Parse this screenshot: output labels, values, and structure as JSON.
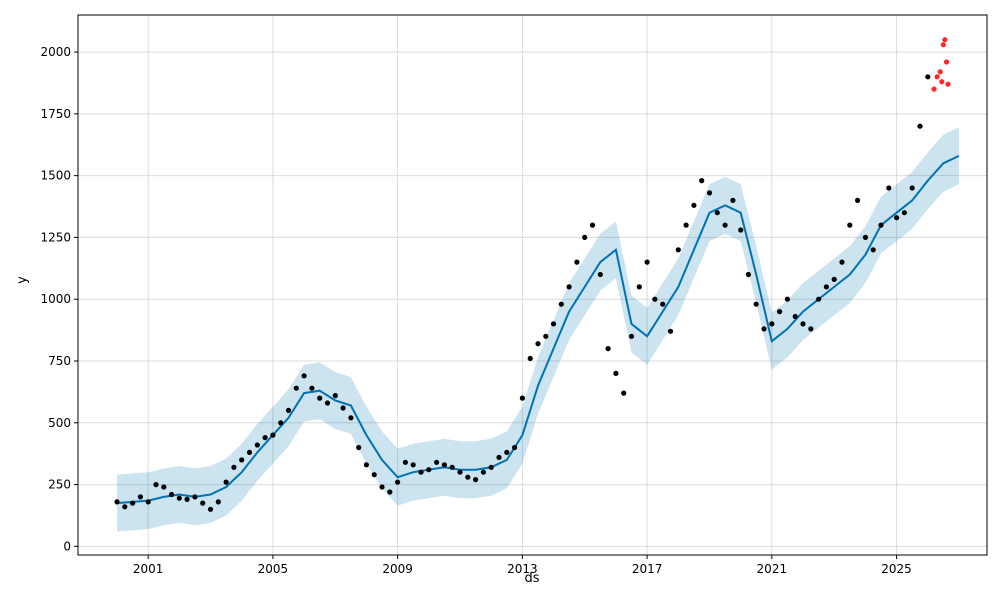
{
  "chart_data": {
    "type": "line",
    "title": "",
    "xlabel": "ds",
    "ylabel": "y",
    "xlim": [
      1998.75,
      2027.9
    ],
    "ylim": [
      -35,
      2150
    ],
    "grid": true,
    "x_ticks": [
      2001,
      2005,
      2009,
      2013,
      2017,
      2021,
      2025
    ],
    "x_tick_labels": [
      "2001",
      "2005",
      "2009",
      "2013",
      "2017",
      "2021",
      "2025"
    ],
    "y_ticks": [
      0,
      250,
      500,
      750,
      1000,
      1250,
      1500,
      1750,
      2000
    ],
    "y_tick_labels": [
      "0",
      "250",
      "500",
      "750",
      "1000",
      "1250",
      "1500",
      "1750",
      "2000"
    ],
    "colors": {
      "actual": "#000000",
      "forecast": "#0072B2",
      "interval": "#0072B2",
      "anomaly": "#ff0000"
    },
    "series": [
      {
        "role": "actual",
        "style": "points",
        "x": [
          2000.0,
          2000.25,
          2000.5,
          2000.75,
          2001.0,
          2001.25,
          2001.5,
          2001.75,
          2002.0,
          2002.25,
          2002.5,
          2002.75,
          2003.0,
          2003.25,
          2003.5,
          2003.75,
          2004.0,
          2004.25,
          2004.5,
          2004.75,
          2005.0,
          2005.25,
          2005.5,
          2005.75,
          2006.0,
          2006.25,
          2006.5,
          2006.75,
          2007.0,
          2007.25,
          2007.5,
          2007.75,
          2008.0,
          2008.25,
          2008.5,
          2008.75,
          2009.0,
          2009.25,
          2009.5,
          2009.75,
          2010.0,
          2010.25,
          2010.5,
          2010.75,
          2011.0,
          2011.25,
          2011.5,
          2011.75,
          2012.0,
          2012.25,
          2012.5,
          2012.75,
          2013.0,
          2013.25,
          2013.5,
          2013.75,
          2014.0,
          2014.25,
          2014.5,
          2014.75,
          2015.0,
          2015.25,
          2015.5,
          2015.75,
          2016.0,
          2016.25,
          2016.5,
          2016.75,
          2017.0,
          2017.25,
          2017.5,
          2017.75,
          2018.0,
          2018.25,
          2018.5,
          2018.75,
          2019.0,
          2019.25,
          2019.5,
          2019.75,
          2020.0,
          2020.25,
          2020.5,
          2020.75,
          2021.0,
          2021.25,
          2021.5,
          2021.75,
          2022.0,
          2022.25,
          2022.5,
          2022.75,
          2023.0,
          2023.25,
          2023.5,
          2023.75,
          2024.0,
          2024.25,
          2024.5,
          2024.75,
          2025.0,
          2025.25,
          2025.5,
          2025.75,
          2026.0
        ],
        "y": [
          180,
          160,
          175,
          200,
          180,
          250,
          240,
          210,
          195,
          190,
          200,
          175,
          150,
          180,
          260,
          320,
          350,
          380,
          410,
          440,
          450,
          500,
          550,
          640,
          690,
          640,
          600,
          580,
          610,
          560,
          520,
          400,
          330,
          290,
          240,
          220,
          260,
          340,
          330,
          300,
          310,
          340,
          330,
          320,
          300,
          280,
          270,
          300,
          320,
          360,
          380,
          400,
          600,
          760,
          820,
          850,
          900,
          980,
          1050,
          1150,
          1250,
          1300,
          1100,
          800,
          700,
          620,
          850,
          1050,
          1150,
          1000,
          980,
          870,
          1200,
          1300,
          1380,
          1480,
          1430,
          1350,
          1300,
          1400,
          1280,
          1100,
          980,
          880,
          900,
          950,
          1000,
          930,
          900,
          880,
          1000,
          1050,
          1080,
          1150,
          1300,
          1400,
          1250,
          1200,
          1300,
          1450,
          1330,
          1350,
          1450,
          1700,
          1900
        ]
      },
      {
        "role": "forecast",
        "style": "line",
        "x": [
          2000.0,
          2000.5,
          2001.0,
          2001.5,
          2002.0,
          2002.5,
          2003.0,
          2003.5,
          2004.0,
          2004.5,
          2005.0,
          2005.5,
          2006.0,
          2006.5,
          2007.0,
          2007.5,
          2008.0,
          2008.5,
          2009.0,
          2009.5,
          2010.0,
          2010.5,
          2011.0,
          2011.5,
          2012.0,
          2012.5,
          2013.0,
          2013.5,
          2014.0,
          2014.5,
          2015.0,
          2015.5,
          2016.0,
          2016.5,
          2017.0,
          2017.5,
          2018.0,
          2018.5,
          2019.0,
          2019.5,
          2020.0,
          2020.5,
          2021.0,
          2021.5,
          2022.0,
          2022.5,
          2023.0,
          2023.5,
          2024.0,
          2024.5,
          2025.0,
          2025.5,
          2026.0,
          2026.5,
          2027.0
        ],
        "y": [
          175,
          180,
          185,
          200,
          210,
          200,
          210,
          240,
          300,
          380,
          450,
          520,
          620,
          630,
          590,
          570,
          450,
          350,
          280,
          300,
          310,
          320,
          310,
          310,
          320,
          350,
          450,
          650,
          800,
          950,
          1050,
          1150,
          1200,
          900,
          850,
          950,
          1050,
          1200,
          1350,
          1380,
          1350,
          1100,
          830,
          880,
          950,
          1000,
          1050,
          1100,
          1180,
          1300,
          1350,
          1400,
          1480,
          1550,
          1580
        ]
      },
      {
        "role": "interval-upper",
        "style": "band-edge",
        "x": [
          2000.0,
          2000.5,
          2001.0,
          2001.5,
          2002.0,
          2002.5,
          2003.0,
          2003.5,
          2004.0,
          2004.5,
          2005.0,
          2005.5,
          2006.0,
          2006.5,
          2007.0,
          2007.5,
          2008.0,
          2008.5,
          2009.0,
          2009.5,
          2010.0,
          2010.5,
          2011.0,
          2011.5,
          2012.0,
          2012.5,
          2013.0,
          2013.5,
          2014.0,
          2014.5,
          2015.0,
          2015.5,
          2016.0,
          2016.5,
          2017.0,
          2017.5,
          2018.0,
          2018.5,
          2019.0,
          2019.5,
          2020.0,
          2020.5,
          2021.0,
          2021.5,
          2022.0,
          2022.5,
          2023.0,
          2023.5,
          2024.0,
          2024.5,
          2025.0,
          2025.5,
          2026.0,
          2026.5,
          2027.0
        ],
        "y": [
          290,
          295,
          300,
          315,
          325,
          315,
          325,
          355,
          415,
          495,
          565,
          635,
          735,
          745,
          705,
          685,
          565,
          465,
          395,
          415,
          425,
          435,
          425,
          425,
          435,
          465,
          565,
          765,
          915,
          1065,
          1165,
          1265,
          1315,
          1015,
          965,
          1065,
          1165,
          1315,
          1465,
          1495,
          1465,
          1215,
          945,
          995,
          1065,
          1115,
          1165,
          1215,
          1295,
          1415,
          1465,
          1515,
          1595,
          1665,
          1695
        ]
      },
      {
        "role": "interval-lower",
        "style": "band-edge",
        "x": [
          2000.0,
          2000.5,
          2001.0,
          2001.5,
          2002.0,
          2002.5,
          2003.0,
          2003.5,
          2004.0,
          2004.5,
          2005.0,
          2005.5,
          2006.0,
          2006.5,
          2007.0,
          2007.5,
          2008.0,
          2008.5,
          2009.0,
          2009.5,
          2010.0,
          2010.5,
          2011.0,
          2011.5,
          2012.0,
          2012.5,
          2013.0,
          2013.5,
          2014.0,
          2014.5,
          2015.0,
          2015.5,
          2016.0,
          2016.5,
          2017.0,
          2017.5,
          2018.0,
          2018.5,
          2019.0,
          2019.5,
          2020.0,
          2020.5,
          2021.0,
          2021.5,
          2022.0,
          2022.5,
          2023.0,
          2023.5,
          2024.0,
          2024.5,
          2025.0,
          2025.5,
          2026.0,
          2026.5,
          2027.0
        ],
        "y": [
          60,
          65,
          70,
          85,
          95,
          85,
          95,
          125,
          185,
          265,
          335,
          405,
          505,
          515,
          475,
          455,
          335,
          235,
          165,
          185,
          195,
          205,
          195,
          195,
          205,
          235,
          335,
          535,
          685,
          835,
          935,
          1035,
          1085,
          785,
          735,
          835,
          935,
          1085,
          1235,
          1265,
          1235,
          985,
          715,
          765,
          835,
          885,
          935,
          985,
          1065,
          1185,
          1235,
          1285,
          1365,
          1435,
          1465
        ]
      },
      {
        "role": "anomaly",
        "style": "points",
        "x": [
          2026.2,
          2026.3,
          2026.4,
          2026.45,
          2026.5,
          2026.55,
          2026.6,
          2026.65
        ],
        "y": [
          1850,
          1900,
          1920,
          1880,
          2030,
          2050,
          1960,
          1870
        ]
      }
    ]
  }
}
